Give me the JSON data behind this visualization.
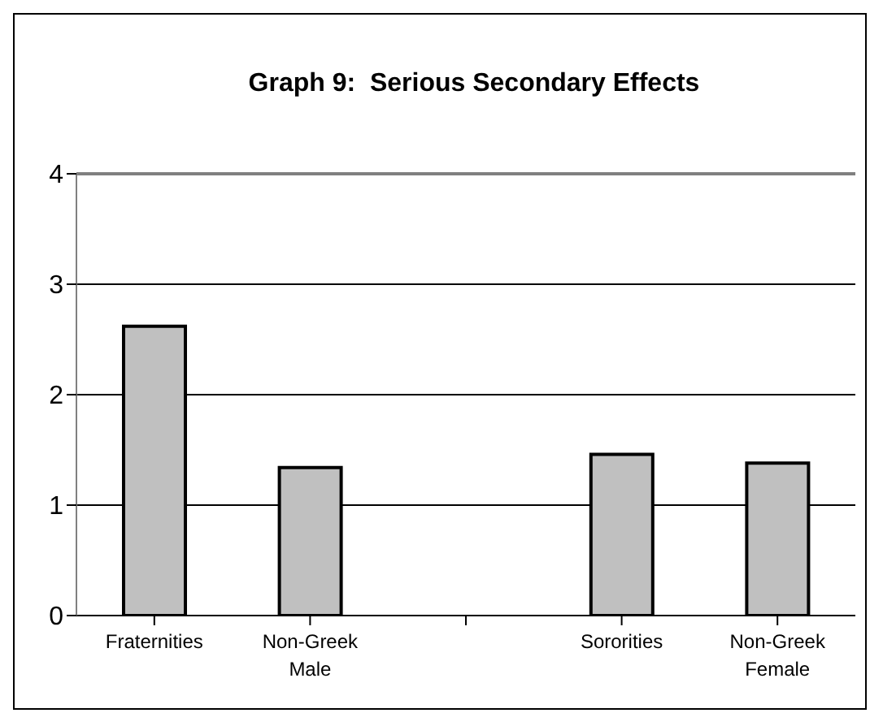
{
  "chart_data": {
    "type": "bar",
    "title": "Graph 9:  Serious Secondary Effects",
    "categories": [
      "Fraternities",
      "Non-Greek Male",
      null,
      "Sororities",
      "Non-Greek Female"
    ],
    "values": [
      2.62,
      1.34,
      null,
      1.46,
      1.38
    ],
    "color": "#c0c0c0",
    "ylim": [
      0,
      4
    ],
    "yticks": [
      0,
      1,
      2,
      3,
      4
    ],
    "grid": "y"
  }
}
